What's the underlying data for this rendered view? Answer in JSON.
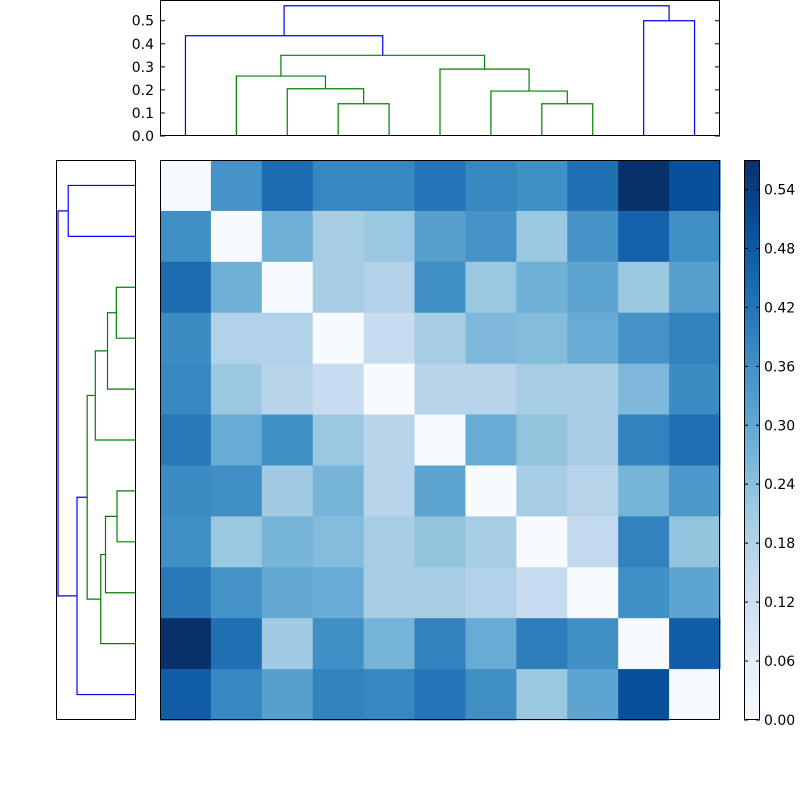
{
  "chart_data": {
    "type": "heatmap",
    "title": "",
    "xlabel": "",
    "ylabel": "",
    "colormap": "Blues",
    "colors": {
      "colormap_stops": [
        "#f7fbff",
        "#deebf7",
        "#c6dbef",
        "#9ecae1",
        "#6baed6",
        "#4292c6",
        "#2171b5",
        "#08519c",
        "#08306b"
      ],
      "cluster_a": "#0000ff",
      "cluster_b": "#008000",
      "frame": "#000000"
    },
    "value_range": [
      0,
      0.57
    ],
    "matrix": [
      [
        0.0,
        0.35,
        0.44,
        0.38,
        0.38,
        0.42,
        0.38,
        0.36,
        0.43,
        0.57,
        0.5
      ],
      [
        0.36,
        0.0,
        0.28,
        0.2,
        0.22,
        0.32,
        0.35,
        0.22,
        0.35,
        0.46,
        0.36
      ],
      [
        0.44,
        0.28,
        0.0,
        0.2,
        0.18,
        0.36,
        0.22,
        0.28,
        0.31,
        0.22,
        0.32
      ],
      [
        0.37,
        0.18,
        0.18,
        0.0,
        0.14,
        0.2,
        0.26,
        0.25,
        0.29,
        0.35,
        0.39
      ],
      [
        0.38,
        0.22,
        0.17,
        0.14,
        0.0,
        0.17,
        0.17,
        0.2,
        0.2,
        0.26,
        0.37
      ],
      [
        0.41,
        0.29,
        0.36,
        0.22,
        0.17,
        0.0,
        0.29,
        0.23,
        0.2,
        0.39,
        0.43
      ],
      [
        0.37,
        0.36,
        0.21,
        0.27,
        0.17,
        0.31,
        0.0,
        0.2,
        0.17,
        0.27,
        0.34
      ],
      [
        0.36,
        0.22,
        0.27,
        0.25,
        0.2,
        0.23,
        0.2,
        0.0,
        0.15,
        0.39,
        0.23
      ],
      [
        0.41,
        0.35,
        0.3,
        0.29,
        0.2,
        0.2,
        0.18,
        0.14,
        0.0,
        0.36,
        0.31
      ],
      [
        0.57,
        0.43,
        0.21,
        0.36,
        0.27,
        0.39,
        0.29,
        0.4,
        0.36,
        0.0,
        0.47
      ],
      [
        0.47,
        0.38,
        0.32,
        0.39,
        0.38,
        0.42,
        0.36,
        0.22,
        0.31,
        0.5,
        0.0
      ]
    ],
    "colorbar": {
      "ticks": [
        "0.00",
        "0.06",
        "0.12",
        "0.18",
        "0.24",
        "0.30",
        "0.36",
        "0.42",
        "0.48",
        "0.54"
      ]
    },
    "top_dendrogram": {
      "yaxis_ticks": [
        "0.0",
        "0.1",
        "0.2",
        "0.3",
        "0.4",
        "0.5"
      ],
      "ylim": [
        0,
        0.59
      ],
      "links": [
        {
          "xl": 3.5,
          "yl": 0.0,
          "xr": 4.5,
          "yr": 0.0,
          "h": 0.14,
          "cluster": "b"
        },
        {
          "xl": 2.5,
          "yl": 0.0,
          "xr": 4.0,
          "yr": 0.14,
          "h": 0.205,
          "cluster": "b"
        },
        {
          "xl": 1.5,
          "yl": 0.0,
          "xr": 3.25,
          "yr": 0.205,
          "h": 0.26,
          "cluster": "b"
        },
        {
          "xl": 7.5,
          "yl": 0.0,
          "xr": 8.5,
          "yr": 0.0,
          "h": 0.14,
          "cluster": "b"
        },
        {
          "xl": 6.5,
          "yl": 0.0,
          "xr": 8.0,
          "yr": 0.14,
          "h": 0.195,
          "cluster": "b"
        },
        {
          "xl": 5.5,
          "yl": 0.0,
          "xr": 7.25,
          "yr": 0.195,
          "h": 0.29,
          "cluster": "b"
        },
        {
          "xl": 2.375,
          "yl": 0.26,
          "xr": 6.375,
          "yr": 0.29,
          "h": 0.35,
          "cluster": "b"
        },
        {
          "xl": 0.5,
          "yl": 0.0,
          "xr": 4.375,
          "yr": 0.35,
          "h": 0.435,
          "cluster": "a"
        },
        {
          "xl": 9.5,
          "yl": 0.0,
          "xr": 10.5,
          "yr": 0.0,
          "h": 0.5,
          "cluster": "a"
        },
        {
          "xl": 2.4375,
          "yl": 0.435,
          "xr": 10.0,
          "yr": 0.5,
          "h": 0.565,
          "cluster": "a"
        }
      ]
    },
    "left_dendrogram": {
      "xlim": [
        0,
        0.59
      ],
      "links": [
        {
          "yt": 0.5,
          "vt": 0.0,
          "yb": 1.5,
          "vb": 0.0,
          "h": 0.5,
          "cluster": "a"
        },
        {
          "yt": 2.5,
          "vt": 0.0,
          "yb": 3.5,
          "vb": 0.0,
          "h": 0.145,
          "cluster": "b"
        },
        {
          "yt": 3.0,
          "vt": 0.145,
          "yb": 4.5,
          "vb": 0.0,
          "h": 0.21,
          "cluster": "b"
        },
        {
          "yt": 3.75,
          "vt": 0.21,
          "yb": 5.5,
          "vb": 0.0,
          "h": 0.3,
          "cluster": "b"
        },
        {
          "yt": 6.5,
          "vt": 0.0,
          "yb": 7.5,
          "vb": 0.0,
          "h": 0.14,
          "cluster": "b"
        },
        {
          "yt": 7.0,
          "vt": 0.14,
          "yb": 8.5,
          "vb": 0.0,
          "h": 0.225,
          "cluster": "b"
        },
        {
          "yt": 7.75,
          "vt": 0.225,
          "yb": 9.5,
          "vb": 0.0,
          "h": 0.26,
          "cluster": "b"
        },
        {
          "yt": 4.625,
          "vt": 0.3,
          "yb": 8.625,
          "vb": 0.26,
          "h": 0.36,
          "cluster": "b"
        },
        {
          "yt": 6.625,
          "vt": 0.36,
          "yb": 10.5,
          "vb": 0.0,
          "h": 0.435,
          "cluster": "a"
        },
        {
          "yt": 1.0,
          "vt": 0.5,
          "yb": 8.5625,
          "vb": 0.435,
          "h": 0.575,
          "cluster": "a"
        }
      ]
    }
  }
}
